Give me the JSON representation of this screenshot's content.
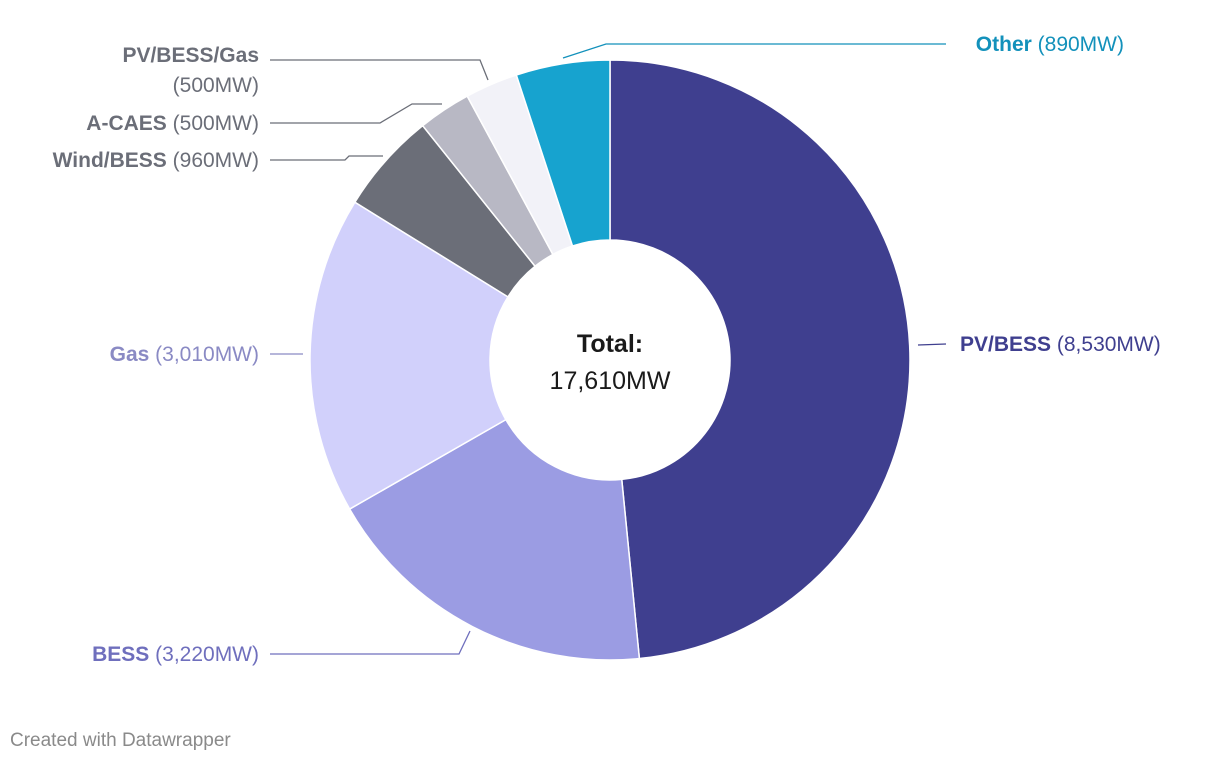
{
  "chart_data": {
    "type": "pie",
    "variant": "donut",
    "unit": "MW",
    "center_label": {
      "title": "Total:",
      "value": "17,610MW"
    },
    "total": 17610,
    "slices": [
      {
        "name": "PV/BESS",
        "value": 8530,
        "value_label": "(8,530MW)",
        "color": "#3f3f8f",
        "label_color": "#3f3f8f"
      },
      {
        "name": "BESS",
        "value": 3220,
        "value_label": "(3,220MW)",
        "color": "#9b9ce3",
        "label_color": "#6f6fbd"
      },
      {
        "name": "Gas",
        "value": 3010,
        "value_label": "(3,010MW)",
        "color": "#d1d0fb",
        "label_color": "#8a8ac4"
      },
      {
        "name": "Wind/BESS",
        "value": 960,
        "value_label": "(960MW)",
        "color": "#6b6e78",
        "label_color": "#6b6e78"
      },
      {
        "name": "A-CAES",
        "value": 500,
        "value_label": "(500MW)",
        "color": "#b8b8c4",
        "label_color": "#6b6e78"
      },
      {
        "name": "PV/BESS/Gas",
        "value": 500,
        "value_label": "(500MW)",
        "color": "#f2f2f8",
        "label_color": "#6b6e78"
      },
      {
        "name": "Other",
        "value": 890,
        "value_label": "(890MW)",
        "color": "#17a3cf",
        "label_color": "#1391bb"
      }
    ]
  },
  "footer": {
    "credit": "Created with Datawrapper"
  }
}
